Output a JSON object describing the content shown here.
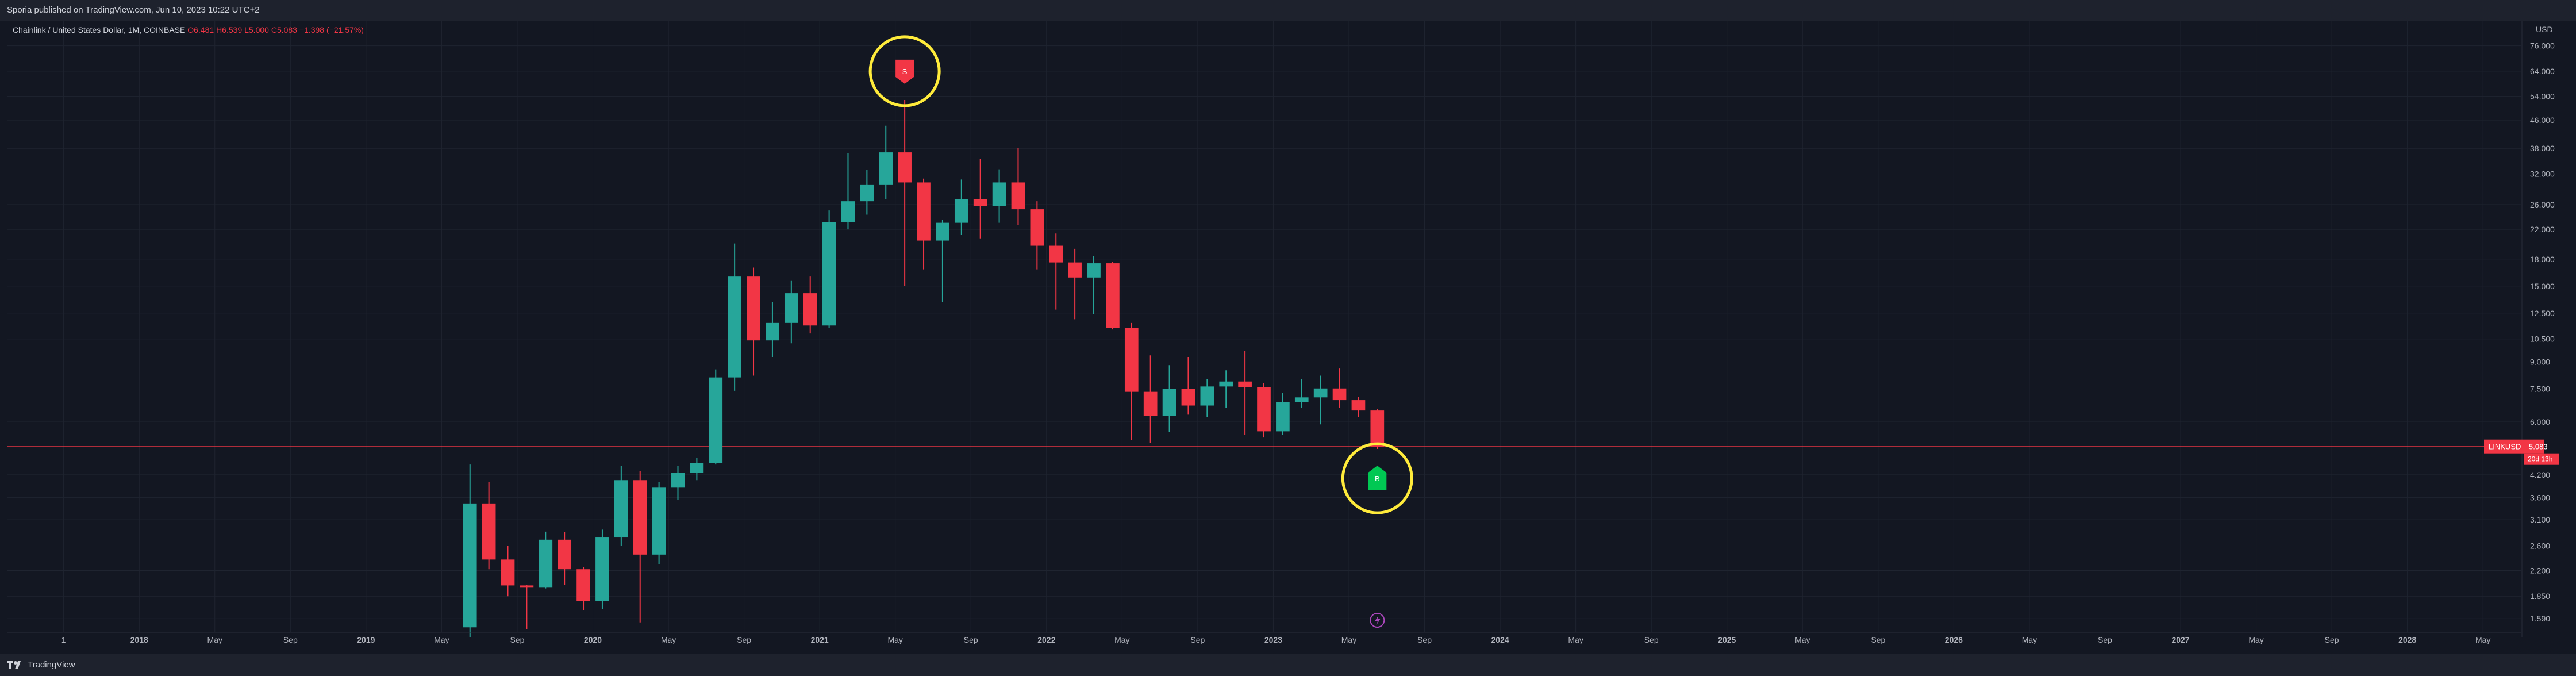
{
  "header": {
    "publish_line": "Sporia published on TradingView.com, Jun 10, 2023 10:22 UTC+2"
  },
  "legend": {
    "symbol": "Chainlink / United States Dollar, 1M, COINBASE",
    "open": "O6.481",
    "high": "H6.539",
    "low": "L5.000",
    "close": "C5.083",
    "change": "−1.398 (−21.57%)"
  },
  "footer": {
    "brand": "TradingView"
  },
  "colors": {
    "up": "#26a69a",
    "down": "#f23645",
    "background": "#131722",
    "grid": "#1f2430",
    "highlight_circle": "#ffeb3b",
    "sell_marker": "#f23645",
    "buy_marker": "#00c853",
    "event_icon": "#ab47bc"
  },
  "icons": {
    "sell_marker": "arrow-down-marker-icon",
    "buy_marker": "arrow-up-marker-icon",
    "event": "event-flag-icon",
    "brand": "tradingview-logo-icon"
  },
  "chart_data": {
    "type": "candlestick",
    "scale": "log",
    "currency_label": "USD",
    "y_ticks": [
      1.59,
      1.85,
      2.2,
      2.6,
      3.1,
      3.6,
      4.2,
      6.0,
      7.5,
      9.0,
      10.5,
      12.5,
      15.0,
      18.0,
      22.0,
      26.0,
      32.0,
      38.0,
      46.0,
      54.0,
      64.0,
      76.0
    ],
    "y_tick_labels": [
      "1.590",
      "1.850",
      "2.200",
      "2.600",
      "3.100",
      "3.600",
      "4.200",
      "6.000",
      "7.500",
      "9.000",
      "10.500",
      "12.500",
      "15.000",
      "18.000",
      "22.000",
      "26.000",
      "32.000",
      "38.000",
      "46.000",
      "54.000",
      "64.000",
      "76.000"
    ],
    "ylim": [
      1.45,
      90
    ],
    "x_range": [
      "2017-06",
      "2028-07"
    ],
    "x_ticks": [
      {
        "label": "1",
        "date": "2017-09"
      },
      {
        "label": "2018",
        "date": "2018-01"
      },
      {
        "label": "May",
        "date": "2018-05"
      },
      {
        "label": "Sep",
        "date": "2018-09"
      },
      {
        "label": "2019",
        "date": "2019-01"
      },
      {
        "label": "May",
        "date": "2019-05"
      },
      {
        "label": "Sep",
        "date": "2019-09"
      },
      {
        "label": "2020",
        "date": "2020-01"
      },
      {
        "label": "May",
        "date": "2020-05"
      },
      {
        "label": "Sep",
        "date": "2020-09"
      },
      {
        "label": "2021",
        "date": "2021-01"
      },
      {
        "label": "May",
        "date": "2021-05"
      },
      {
        "label": "Sep",
        "date": "2021-09"
      },
      {
        "label": "2022",
        "date": "2022-01"
      },
      {
        "label": "May",
        "date": "2022-05"
      },
      {
        "label": "Sep",
        "date": "2022-09"
      },
      {
        "label": "2023",
        "date": "2023-01"
      },
      {
        "label": "May",
        "date": "2023-05"
      },
      {
        "label": "Sep",
        "date": "2023-09"
      },
      {
        "label": "2024",
        "date": "2024-01"
      },
      {
        "label": "May",
        "date": "2024-05"
      },
      {
        "label": "Sep",
        "date": "2024-09"
      },
      {
        "label": "2025",
        "date": "2025-01"
      },
      {
        "label": "May",
        "date": "2025-05"
      },
      {
        "label": "Sep",
        "date": "2025-09"
      },
      {
        "label": "2026",
        "date": "2026-01"
      },
      {
        "label": "May",
        "date": "2026-05"
      },
      {
        "label": "Sep",
        "date": "2026-09"
      },
      {
        "label": "2027",
        "date": "2027-01"
      },
      {
        "label": "May",
        "date": "2027-05"
      },
      {
        "label": "Sep",
        "date": "2027-09"
      },
      {
        "label": "2028",
        "date": "2028-01"
      },
      {
        "label": "May",
        "date": "2028-05"
      }
    ],
    "candles": [
      {
        "date": "2019-06",
        "o": 1.5,
        "h": 4.5,
        "l": 1.4,
        "c": 3.46
      },
      {
        "date": "2019-07",
        "o": 3.46,
        "h": 4.0,
        "l": 2.22,
        "c": 2.37
      },
      {
        "date": "2019-08",
        "o": 2.37,
        "h": 2.6,
        "l": 1.85,
        "c": 1.99
      },
      {
        "date": "2019-09",
        "o": 1.99,
        "h": 2.0,
        "l": 1.48,
        "c": 1.96
      },
      {
        "date": "2019-10",
        "o": 1.96,
        "h": 2.86,
        "l": 1.95,
        "c": 2.71
      },
      {
        "date": "2019-11",
        "o": 2.71,
        "h": 2.85,
        "l": 2.0,
        "c": 2.22
      },
      {
        "date": "2019-12",
        "o": 2.22,
        "h": 2.25,
        "l": 1.68,
        "c": 1.79
      },
      {
        "date": "2020-01",
        "o": 1.79,
        "h": 2.9,
        "l": 1.7,
        "c": 2.75
      },
      {
        "date": "2020-02",
        "o": 2.75,
        "h": 4.45,
        "l": 2.6,
        "c": 4.05
      },
      {
        "date": "2020-03",
        "o": 4.05,
        "h": 4.3,
        "l": 1.55,
        "c": 2.45
      },
      {
        "date": "2020-04",
        "o": 2.45,
        "h": 4.0,
        "l": 2.3,
        "c": 3.85
      },
      {
        "date": "2020-05",
        "o": 3.85,
        "h": 4.45,
        "l": 3.55,
        "c": 4.25
      },
      {
        "date": "2020-06",
        "o": 4.25,
        "h": 4.7,
        "l": 4.05,
        "c": 4.55
      },
      {
        "date": "2020-07",
        "o": 4.55,
        "h": 8.55,
        "l": 4.5,
        "c": 8.1
      },
      {
        "date": "2020-08",
        "o": 8.1,
        "h": 20.0,
        "l": 7.4,
        "c": 16.0
      },
      {
        "date": "2020-09",
        "o": 16.0,
        "h": 17.0,
        "l": 8.2,
        "c": 10.4
      },
      {
        "date": "2020-10",
        "o": 10.4,
        "h": 13.5,
        "l": 9.3,
        "c": 11.7
      },
      {
        "date": "2020-11",
        "o": 11.7,
        "h": 15.6,
        "l": 10.2,
        "c": 14.3
      },
      {
        "date": "2020-12",
        "o": 14.3,
        "h": 16.0,
        "l": 10.9,
        "c": 11.5
      },
      {
        "date": "2021-01",
        "o": 11.5,
        "h": 25.0,
        "l": 11.3,
        "c": 23.1
      },
      {
        "date": "2021-02",
        "o": 23.1,
        "h": 36.8,
        "l": 22.0,
        "c": 26.6
      },
      {
        "date": "2021-03",
        "o": 26.6,
        "h": 32.9,
        "l": 24.3,
        "c": 29.8
      },
      {
        "date": "2021-04",
        "o": 29.8,
        "h": 44.3,
        "l": 27.0,
        "c": 37.0
      },
      {
        "date": "2021-05",
        "o": 37.0,
        "h": 52.7,
        "l": 15.0,
        "c": 30.2
      },
      {
        "date": "2021-06",
        "o": 30.2,
        "h": 31.0,
        "l": 16.8,
        "c": 20.4
      },
      {
        "date": "2021-07",
        "o": 20.4,
        "h": 23.5,
        "l": 13.5,
        "c": 23.0
      },
      {
        "date": "2021-08",
        "o": 23.0,
        "h": 30.8,
        "l": 21.2,
        "c": 27.0
      },
      {
        "date": "2021-09",
        "o": 27.0,
        "h": 35.4,
        "l": 20.7,
        "c": 25.8
      },
      {
        "date": "2021-10",
        "o": 25.8,
        "h": 33.0,
        "l": 23.0,
        "c": 30.2
      },
      {
        "date": "2021-11",
        "o": 30.2,
        "h": 38.1,
        "l": 22.7,
        "c": 25.2
      },
      {
        "date": "2021-12",
        "o": 25.2,
        "h": 26.6,
        "l": 16.8,
        "c": 19.7
      },
      {
        "date": "2022-01",
        "o": 19.7,
        "h": 21.4,
        "l": 12.8,
        "c": 17.6
      },
      {
        "date": "2022-02",
        "o": 17.6,
        "h": 19.3,
        "l": 12.0,
        "c": 15.9
      },
      {
        "date": "2022-03",
        "o": 15.9,
        "h": 18.4,
        "l": 12.4,
        "c": 17.5
      },
      {
        "date": "2022-04",
        "o": 17.5,
        "h": 17.7,
        "l": 11.2,
        "c": 11.3
      },
      {
        "date": "2022-05",
        "o": 11.3,
        "h": 11.7,
        "l": 5.3,
        "c": 7.35
      },
      {
        "date": "2022-06",
        "o": 7.35,
        "h": 9.4,
        "l": 5.2,
        "c": 6.25
      },
      {
        "date": "2022-07",
        "o": 6.25,
        "h": 8.8,
        "l": 5.6,
        "c": 7.5
      },
      {
        "date": "2022-08",
        "o": 7.5,
        "h": 9.3,
        "l": 6.3,
        "c": 6.7
      },
      {
        "date": "2022-09",
        "o": 6.7,
        "h": 8.0,
        "l": 6.2,
        "c": 7.62
      },
      {
        "date": "2022-10",
        "o": 7.62,
        "h": 8.5,
        "l": 6.6,
        "c": 7.88
      },
      {
        "date": "2022-11",
        "o": 7.88,
        "h": 9.7,
        "l": 5.5,
        "c": 7.6
      },
      {
        "date": "2022-12",
        "o": 7.6,
        "h": 7.8,
        "l": 5.4,
        "c": 5.63
      },
      {
        "date": "2023-01",
        "o": 5.63,
        "h": 7.3,
        "l": 5.5,
        "c": 6.86
      },
      {
        "date": "2023-02",
        "o": 6.86,
        "h": 8.0,
        "l": 6.6,
        "c": 7.08
      },
      {
        "date": "2023-03",
        "o": 7.08,
        "h": 8.2,
        "l": 5.9,
        "c": 7.52
      },
      {
        "date": "2023-04",
        "o": 7.52,
        "h": 8.6,
        "l": 6.6,
        "c": 6.95
      },
      {
        "date": "2023-05",
        "o": 6.95,
        "h": 7.1,
        "l": 6.2,
        "c": 6.48
      },
      {
        "date": "2023-06",
        "o": 6.48,
        "h": 6.54,
        "l": 5.0,
        "c": 5.08
      }
    ],
    "last_price": {
      "value": 5.083,
      "symbol_tag": "LINKUSD",
      "value_text": "5.083",
      "countdown": "20d 13h"
    },
    "annotations": [
      {
        "kind": "sell-marker",
        "date": "2021-05",
        "value": 64.0,
        "text": "S"
      },
      {
        "kind": "buy-marker",
        "date": "2023-06",
        "value": 4.1,
        "text": "B"
      }
    ]
  }
}
